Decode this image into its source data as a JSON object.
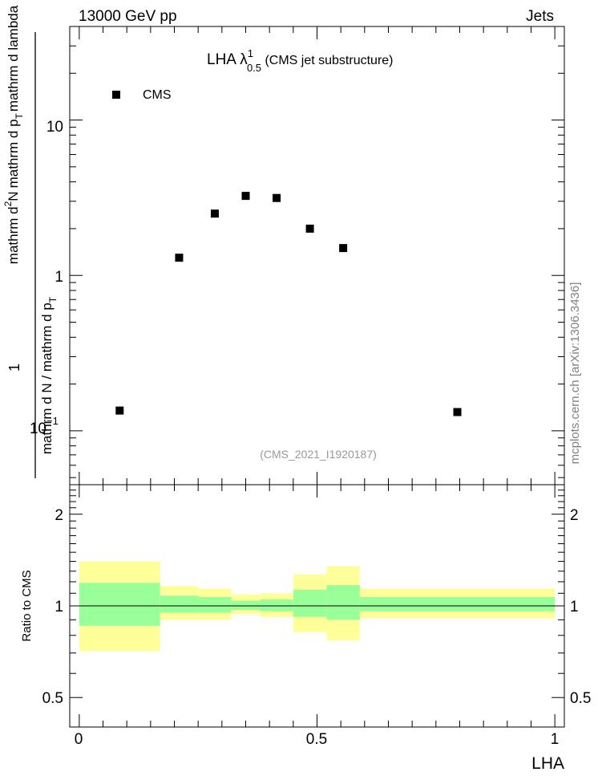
{
  "header": {
    "energy_label": "13000 GeV pp",
    "process_label": "Jets"
  },
  "watermark": "mcplots.cern.ch [arXiv:1306.3436]",
  "analysis_tag": "(CMS_2021_I1920187)",
  "main_plot": {
    "title_main": "LHA λ",
    "title_sup": "1",
    "title_sub": "0.5",
    "title_suffix": " (CMS jet substructure)",
    "ylabel": {
      "numerator": "1",
      "denominator": "mathrm d N / mathrm d p",
      "denominator_sub": "T",
      "top_part1": "mathrm d",
      "top_part1_sup": "2",
      "top_part1_rest": "N",
      "top_part2": "mathrm d p",
      "top_part2_sub": "T",
      "top_part3": "mathrm d lambda"
    },
    "yticks": [
      "10",
      "1",
      "10"
    ],
    "ytick_exp": "−1",
    "legend": "CMS"
  },
  "ratio_plot": {
    "ylabel": "Ratio to CMS",
    "yticks": [
      "2",
      "1",
      "0.5"
    ],
    "xticks": [
      "0",
      "0.5",
      "1"
    ],
    "xlabel": "LHA"
  },
  "chart_data": [
    {
      "type": "scatter",
      "title": "LHA λ^1_0.5 (CMS jet substructure)",
      "yscale": "log",
      "ylim": [
        0.045,
        40
      ],
      "xlim": [
        -0.02,
        1.02
      ],
      "legend_placement": "top-left",
      "series": [
        {
          "name": "CMS",
          "color": "#000000",
          "x": [
            0.085,
            0.21,
            0.285,
            0.35,
            0.415,
            0.485,
            0.555,
            0.795
          ],
          "y": [
            0.135,
            1.3,
            2.5,
            3.25,
            3.15,
            2.0,
            1.5,
            0.132
          ]
        }
      ]
    },
    {
      "type": "area",
      "ylabel": "Ratio to CMS",
      "xlabel": "LHA",
      "yscale": "log",
      "ylim": [
        0.4,
        2.5
      ],
      "xlim": [
        -0.02,
        1.02
      ],
      "band_colors": {
        "inner": "#99ff99",
        "outer": "#ffff99"
      },
      "bins": [
        {
          "x": [
            0.0,
            0.17
          ],
          "inner": [
            0.86,
            1.19
          ],
          "outer": [
            0.71,
            1.4
          ]
        },
        {
          "x": [
            0.17,
            0.25
          ],
          "inner": [
            0.95,
            1.08
          ],
          "outer": [
            0.9,
            1.16
          ]
        },
        {
          "x": [
            0.25,
            0.32
          ],
          "inner": [
            0.95,
            1.07
          ],
          "outer": [
            0.9,
            1.14
          ]
        },
        {
          "x": [
            0.32,
            0.38
          ],
          "inner": [
            0.97,
            1.04
          ],
          "outer": [
            0.94,
            1.09
          ]
        },
        {
          "x": [
            0.38,
            0.45
          ],
          "inner": [
            0.96,
            1.05
          ],
          "outer": [
            0.92,
            1.1
          ]
        },
        {
          "x": [
            0.45,
            0.52
          ],
          "inner": [
            0.92,
            1.13
          ],
          "outer": [
            0.82,
            1.27
          ]
        },
        {
          "x": [
            0.52,
            0.59
          ],
          "inner": [
            0.9,
            1.17
          ],
          "outer": [
            0.77,
            1.35
          ]
        },
        {
          "x": [
            0.59,
            1.0
          ],
          "inner": [
            0.96,
            1.07
          ],
          "outer": [
            0.91,
            1.14
          ]
        }
      ]
    }
  ]
}
